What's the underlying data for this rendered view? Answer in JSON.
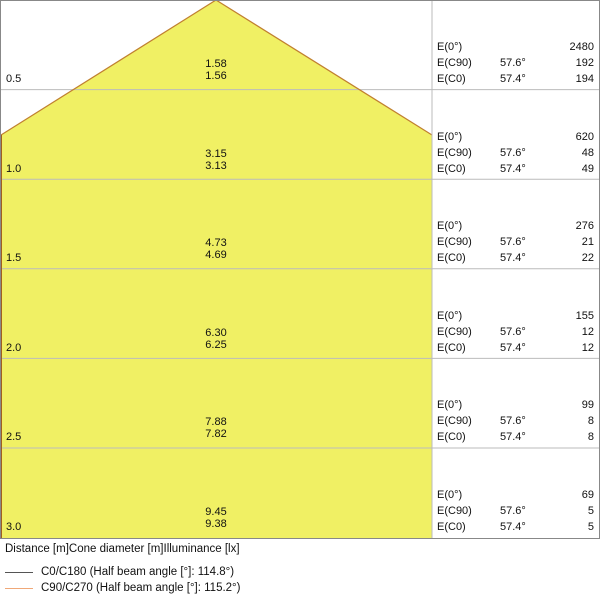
{
  "colors": {
    "cone_fill": "#f0f064",
    "c0_line": "#555555",
    "c90_line": "#f0a878",
    "grid": "#bbbbbb",
    "border": "#888888"
  },
  "rows": [
    {
      "distance": "0.5",
      "d1": "1.58",
      "d2": "1.56",
      "e0": "2480",
      "ec90": "192",
      "ec0": "194"
    },
    {
      "distance": "1.0",
      "d1": "3.15",
      "d2": "3.13",
      "e0": "620",
      "ec90": "48",
      "ec0": "49"
    },
    {
      "distance": "1.5",
      "d1": "4.73",
      "d2": "4.69",
      "e0": "276",
      "ec90": "21",
      "ec0": "22"
    },
    {
      "distance": "2.0",
      "d1": "6.30",
      "d2": "6.25",
      "e0": "155",
      "ec90": "12",
      "ec0": "12"
    },
    {
      "distance": "2.5",
      "d1": "7.88",
      "d2": "7.82",
      "e0": "99",
      "ec90": "8",
      "ec0": "8"
    },
    {
      "distance": "3.0",
      "d1": "9.45",
      "d2": "9.38",
      "e0": "69",
      "ec90": "5",
      "ec0": "5"
    }
  ],
  "labels": {
    "e0": "E(0°)",
    "ec90": "E(C90)",
    "ec0": "E(C0)",
    "angle_c90": "57.6°",
    "angle_c0": "57.4°"
  },
  "footer": "Distance [m]Cone diameter [m]Illuminance [lx]",
  "legend": [
    {
      "label": "C0/C180 (Half beam angle [°]: 114.8°)"
    },
    {
      "label": "C90/C270 (Half beam angle [°]: 115.2°)"
    }
  ]
}
